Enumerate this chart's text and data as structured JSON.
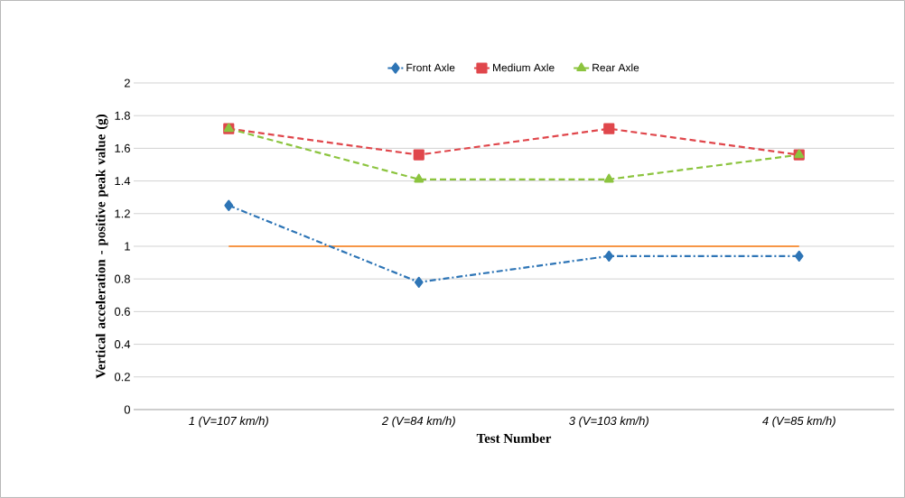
{
  "chart_data": {
    "type": "line",
    "xlabel": "Test Number",
    "ylabel": "Vertical acceleration - positive peak value (g)",
    "categories": [
      "1 (V=107 km/h)",
      "2 (V=84 km/h)",
      "3 (V=103 km/h)",
      "4 (V=85 km/h)"
    ],
    "series": [
      {
        "name": "Front Axle",
        "color": "#2e75b6",
        "values": [
          1.25,
          0.78,
          0.94,
          0.94
        ],
        "marker": "diamond",
        "line_style": "dashdot"
      },
      {
        "name": "Medium Axle",
        "color": "#e0474c",
        "values": [
          1.72,
          1.56,
          1.72,
          1.56
        ],
        "marker": "square",
        "line_style": "dashed"
      },
      {
        "name": "Rear Axle",
        "color": "#8cc43f",
        "values": [
          1.72,
          1.41,
          1.41,
          1.56
        ],
        "marker": "triangle",
        "line_style": "dashed"
      }
    ],
    "ref_lines": [
      {
        "axis": "y",
        "value": 1,
        "color": "#f79646",
        "line_style": "solid"
      }
    ],
    "ylim": [
      0,
      2
    ],
    "yticks": [
      0,
      0.2,
      0.4,
      0.6,
      0.8,
      1,
      1.2,
      1.4,
      1.6,
      1.8,
      2
    ],
    "grid": "y",
    "legend": "top"
  }
}
